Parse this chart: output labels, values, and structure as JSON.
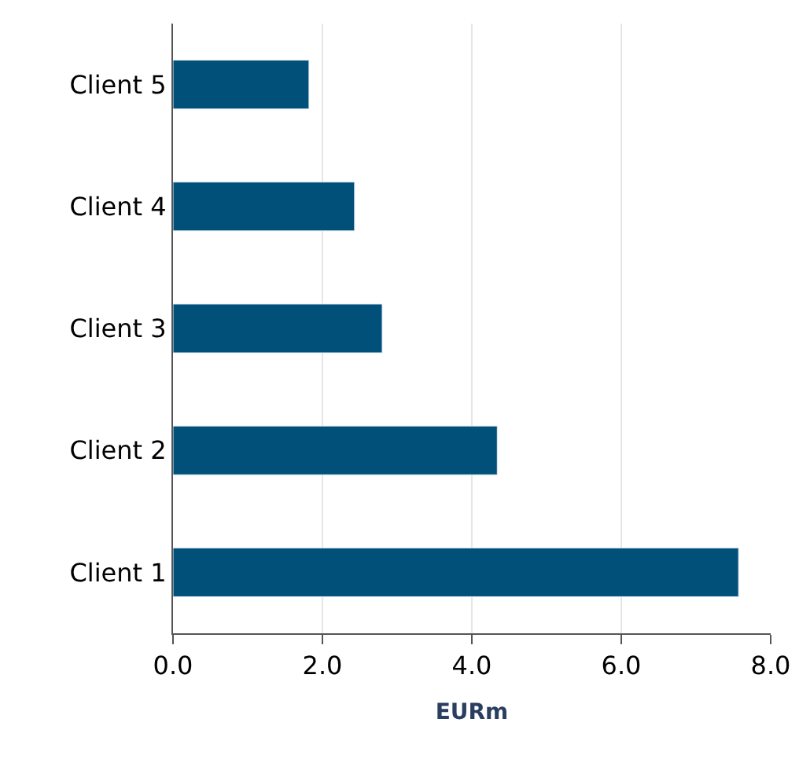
{
  "chart_data": {
    "type": "bar",
    "orientation": "horizontal",
    "xlabel": "EURm",
    "categories": [
      "Client 5",
      "Client 4",
      "Client 3",
      "Client 2",
      "Client 1"
    ],
    "values": [
      1.82,
      2.43,
      2.8,
      4.34,
      7.57
    ],
    "color": "#01507a",
    "xlim": [
      0,
      8
    ],
    "xticks": [
      {
        "value": 0,
        "label": "0.0"
      },
      {
        "value": 2,
        "label": "2.0"
      },
      {
        "value": 4,
        "label": "4.0"
      },
      {
        "value": 6,
        "label": "6.0"
      },
      {
        "value": 8,
        "label": "8.0"
      }
    ],
    "grid": "x",
    "legend": false
  }
}
